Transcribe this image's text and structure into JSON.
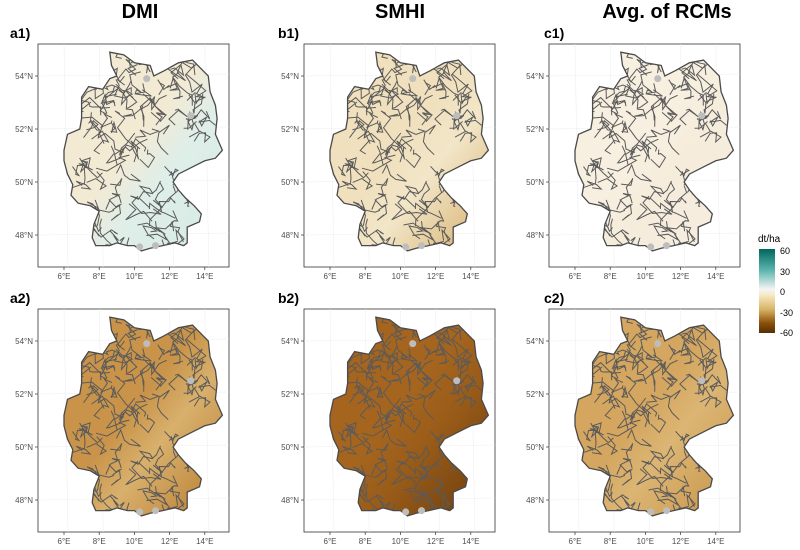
{
  "columns": [
    {
      "key": "dmi",
      "title": "DMI"
    },
    {
      "key": "smhi",
      "title": "SMHI"
    },
    {
      "key": "rcm",
      "title": "Avg. of RCMs"
    }
  ],
  "panels": [
    {
      "label": "a1)",
      "fill": "#f3ead4",
      "east": "#dfeee8",
      "south": "#d6ebe4"
    },
    {
      "label": "b1)",
      "fill": "#f0e0bd",
      "east": "#f2e6c8",
      "south": "#d6ae6a"
    },
    {
      "label": "c1)",
      "fill": "#f7efdf",
      "east": "#f5ecdc",
      "south": "#f6eee0"
    },
    {
      "label": "a2)",
      "fill": "#c99449",
      "east": "#d8b06c",
      "south": "#b87a2e"
    },
    {
      "label": "b2)",
      "fill": "#a5651e",
      "east": "#9a5c19",
      "south": "#6a3c0c"
    },
    {
      "label": "c2)",
      "fill": "#d4a65f",
      "east": "#dcb574",
      "south": "#c69446"
    }
  ],
  "axes": {
    "x_ticks": [
      "6°E",
      "8°E",
      "10°E",
      "12°E",
      "14°E"
    ],
    "y_ticks": [
      "48°N",
      "50°N",
      "52°N",
      "54°N"
    ]
  },
  "legend": {
    "title": "dt/ha",
    "ticks": [
      "60",
      "30",
      "0",
      "-30",
      "-60"
    ]
  }
}
